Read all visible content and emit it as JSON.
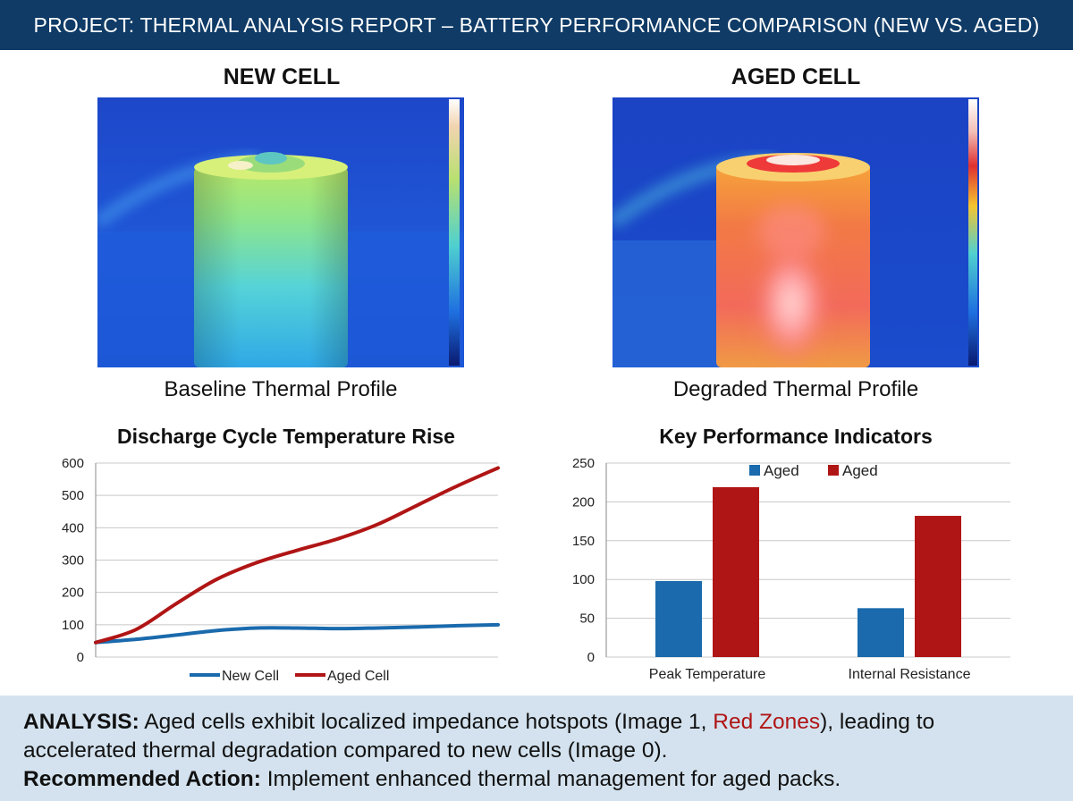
{
  "header": {
    "title": "PROJECT: THERMAL ANALYSIS REPORT – BATTERY PERFORMANCE COMPARISON (NEW VS. AGED)"
  },
  "panels": {
    "new": {
      "title": "NEW CELL",
      "caption": "Baseline Thermal Profile"
    },
    "aged": {
      "title": "AGED CELL",
      "caption": "Degraded Thermal Profile"
    }
  },
  "colors": {
    "header_bg": "#0f3b66",
    "new_series": "#1a6aad",
    "aged_series": "#b01515",
    "footer_bg": "#d3e2ee"
  },
  "chart_data": [
    {
      "type": "line",
      "title": "Discharge Cycle Temperature Rise",
      "xlabel": "",
      "ylabel": "",
      "ylim": [
        0,
        600
      ],
      "yticks": [
        0,
        100,
        200,
        300,
        400,
        500,
        600
      ],
      "grid": true,
      "legend": "bottom",
      "series": [
        {
          "name": "New Cell",
          "x": [
            0,
            1,
            2,
            3,
            4,
            5,
            6,
            7,
            8,
            9,
            10
          ],
          "values": [
            45,
            55,
            68,
            82,
            90,
            90,
            88,
            90,
            93,
            97,
            100
          ]
        },
        {
          "name": "Aged Cell",
          "x": [
            0,
            1,
            2,
            3,
            4,
            5,
            6,
            7,
            8,
            9,
            10
          ],
          "values": [
            45,
            85,
            165,
            240,
            292,
            330,
            365,
            410,
            470,
            530,
            585
          ]
        }
      ]
    },
    {
      "type": "bar",
      "title": "Key Performance Indicators",
      "categories": [
        "Peak Temperature",
        "Internal Resistance"
      ],
      "ylim": [
        0,
        250
      ],
      "yticks": [
        0,
        50,
        100,
        150,
        200,
        250
      ],
      "grid": true,
      "legend": "top",
      "series": [
        {
          "name": "Aged",
          "values": [
            98,
            63
          ]
        },
        {
          "name": "Aged",
          "values": [
            219,
            182
          ]
        }
      ]
    }
  ],
  "footer": {
    "analysis_label": "ANALYSIS:",
    "analysis_text_1": " Aged cells exhibit localized impedance hotspots (Image 1, ",
    "analysis_red": "Red Zones",
    "analysis_text_2": "), leading to accelerated thermal degradation compared to new cells (Image 0).",
    "action_label": "Recommended Action:",
    "action_text": " Implement enhanced thermal management for aged packs."
  }
}
